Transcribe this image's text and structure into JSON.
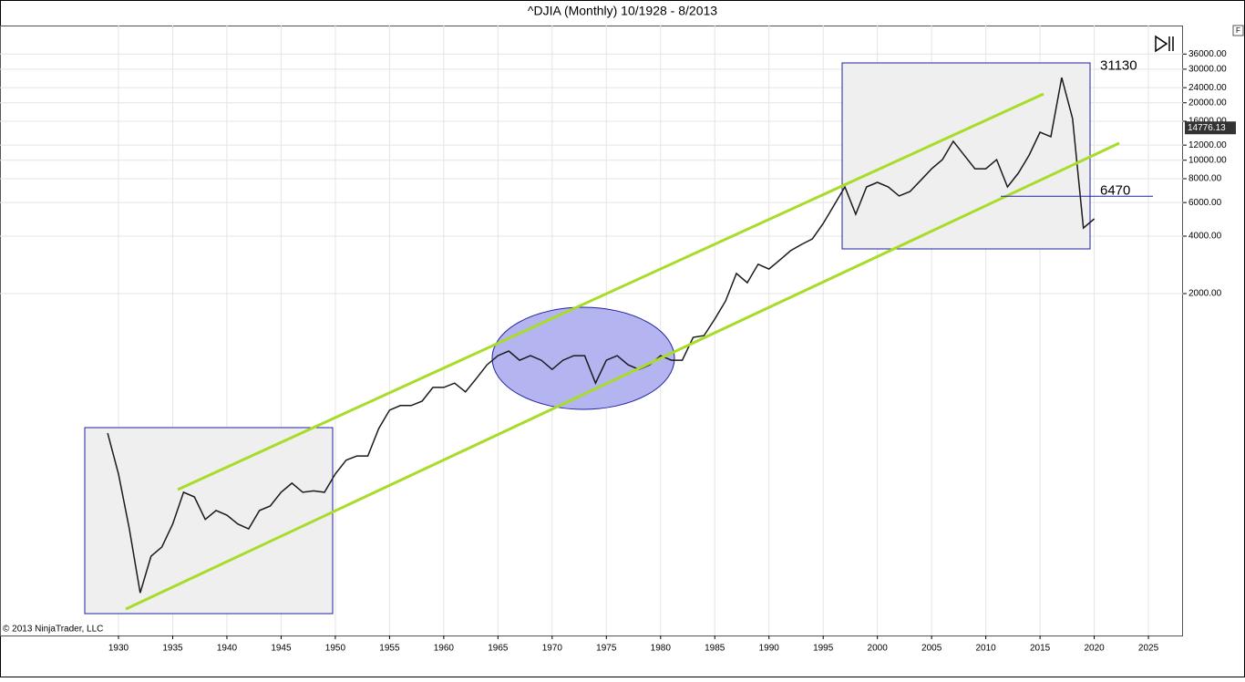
{
  "chart_data": {
    "type": "line",
    "title": "^DJIA (Monthly)  10/1928 - 8/2013",
    "copyright": "© 2013 NinjaTrader, LLC",
    "log_y": true,
    "grid": true,
    "xlim": [
      1919.07,
      2028.19
    ],
    "xticks": [
      1930,
      1935,
      1940,
      1945,
      1950,
      1955,
      1960,
      1965,
      1970,
      1975,
      1980,
      1985,
      1990,
      1995,
      2000,
      2005,
      2010,
      2015,
      2020,
      2025
    ],
    "ylim": [
      32.3,
      50800
    ],
    "yticks": [
      {
        "value": 36000,
        "label": "36000.00"
      },
      {
        "value": 30000,
        "label": "30000.00"
      },
      {
        "value": 24000,
        "label": "24000.00"
      },
      {
        "value": 20000,
        "label": "20000.00"
      },
      {
        "value": 16000,
        "label": "16000.00"
      },
      {
        "value": 12000,
        "label": "12000.00"
      },
      {
        "value": 10000,
        "label": "10000.00"
      },
      {
        "value": 8000,
        "label": "8000.00"
      },
      {
        "value": 6000,
        "label": "6000.00"
      },
      {
        "value": 4000,
        "label": "4000.00"
      },
      {
        "value": 2000,
        "label": "2000.00"
      }
    ],
    "last_price": 14776.13,
    "levels": [
      31130,
      6470
    ],
    "series": [
      {
        "name": "^DJIA",
        "color": "#1a1a1a",
        "x": [
          1929,
          1930,
          1931,
          1932,
          1933,
          1934,
          1935,
          1936,
          1937,
          1938,
          1939,
          1940,
          1941,
          1942,
          1943,
          1944,
          1945,
          1946,
          1947,
          1948,
          1949,
          1950,
          1951,
          1952,
          1953,
          1954,
          1955,
          1956,
          1957,
          1958,
          1959,
          1960,
          1961,
          1962,
          1963,
          1964,
          1965,
          1966,
          1967,
          1968,
          1969,
          1970,
          1971,
          1972,
          1973,
          1974,
          1975,
          1976,
          1977,
          1978,
          1979,
          1980,
          1981,
          1982,
          1983,
          1984,
          1985,
          1986,
          1987,
          1988,
          1989,
          1990,
          1991,
          1992,
          1993,
          1994,
          1995,
          1996,
          1997,
          1998,
          1999,
          2000,
          2001,
          2002,
          2003,
          2004,
          2005,
          2006,
          2007,
          2008,
          2009,
          2010,
          2011,
          2012,
          2013,
          2014,
          2015,
          2016,
          2017,
          2018,
          2019,
          2020
        ],
        "values": [
          371,
          227,
          117,
          54,
          84,
          94,
          124,
          182,
          172,
          131,
          146,
          138,
          124,
          117,
          146,
          154,
          182,
          203,
          182,
          185,
          182,
          227,
          268,
          282,
          282,
          392,
          490,
          518,
          518,
          546,
          645,
          645,
          679,
          611,
          717,
          847,
          946,
          1000,
          895,
          946,
          895,
          801,
          895,
          946,
          946,
          679,
          895,
          946,
          847,
          801,
          847,
          946,
          895,
          895,
          1180,
          1204,
          1470,
          1830,
          2550,
          2280,
          2850,
          2690,
          3000,
          3360,
          3620,
          3870,
          4660,
          5810,
          7250,
          5210,
          7250,
          7660,
          7250,
          6500,
          6850,
          7850,
          9020,
          10070,
          12570,
          10640,
          9020,
          9020,
          10070,
          7250,
          8560,
          10640,
          14020,
          13280,
          27100,
          16540,
          4410,
          4930
        ]
      }
    ]
  },
  "ui": {
    "button": "F"
  }
}
